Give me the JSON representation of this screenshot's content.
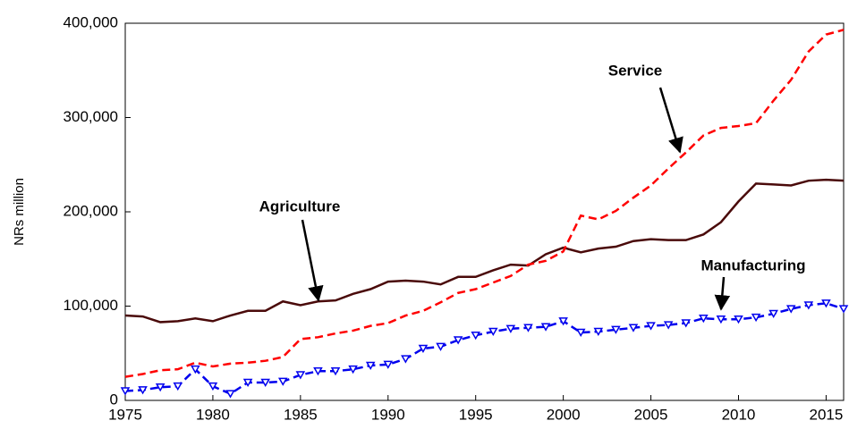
{
  "chart_data": {
    "type": "line",
    "y_label": "NRs million",
    "x": [
      1975,
      1976,
      1977,
      1978,
      1979,
      1980,
      1981,
      1982,
      1983,
      1984,
      1985,
      1986,
      1987,
      1988,
      1989,
      1990,
      1991,
      1992,
      1993,
      1994,
      1995,
      1996,
      1997,
      1998,
      1999,
      2000,
      2001,
      2002,
      2003,
      2004,
      2005,
      2006,
      2007,
      2008,
      2009,
      2010,
      2011,
      2012,
      2013,
      2014,
      2015,
      2016
    ],
    "xlim": [
      1975,
      2016
    ],
    "xticks": [
      1975,
      1980,
      1985,
      1990,
      1995,
      2000,
      2005,
      2010,
      2015
    ],
    "ylim": [
      0,
      400000
    ],
    "yticks": [
      0,
      {
        "value": 100000,
        "label": "100,000"
      },
      {
        "value": 200000,
        "label": "200,000"
      },
      {
        "value": 300000,
        "label": "300,000"
      },
      {
        "value": 400000,
        "label": "400,000"
      }
    ],
    "grid": false,
    "series": [
      {
        "name": "Agriculture",
        "color": "#4a0a0a",
        "line_style": "solid",
        "marker": "none",
        "values": [
          90000,
          89000,
          83000,
          84000,
          87000,
          84000,
          90000,
          95000,
          95000,
          105000,
          101000,
          105000,
          106000,
          113000,
          118000,
          126000,
          127000,
          126000,
          123000,
          131000,
          131000,
          138000,
          144000,
          143000,
          155000,
          162000,
          157000,
          161000,
          163000,
          169000,
          171000,
          170000,
          170000,
          176000,
          189000,
          211000,
          230000,
          229000,
          228000,
          233000,
          234000,
          233000
        ]
      },
      {
        "name": "Service",
        "color": "#ff0000",
        "line_style": "dashed",
        "marker": "none",
        "values": [
          25000,
          28000,
          32000,
          33000,
          40000,
          36000,
          39000,
          40000,
          42000,
          46000,
          65000,
          67000,
          71000,
          74000,
          79000,
          82000,
          90000,
          95000,
          104000,
          114000,
          118000,
          125000,
          132000,
          144000,
          148000,
          158000,
          196000,
          192000,
          201000,
          215000,
          228000,
          246000,
          263000,
          281000,
          289000,
          291000,
          294000,
          318000,
          340000,
          370000,
          388000,
          393000
        ]
      },
      {
        "name": "Manufacturing",
        "color": "#0000ee",
        "line_style": "dashed",
        "marker": "triangle-down",
        "values": [
          10000,
          11000,
          14000,
          15000,
          33000,
          15000,
          7000,
          19000,
          19000,
          20000,
          27000,
          31000,
          31000,
          33000,
          37000,
          38000,
          44000,
          55000,
          57000,
          64000,
          69000,
          73000,
          76000,
          77000,
          78000,
          84000,
          72000,
          73000,
          75000,
          77000,
          79000,
          80000,
          82000,
          87000,
          86000,
          86000,
          88000,
          92000,
          97000,
          101000,
          103000,
          97000
        ]
      }
    ]
  }
}
